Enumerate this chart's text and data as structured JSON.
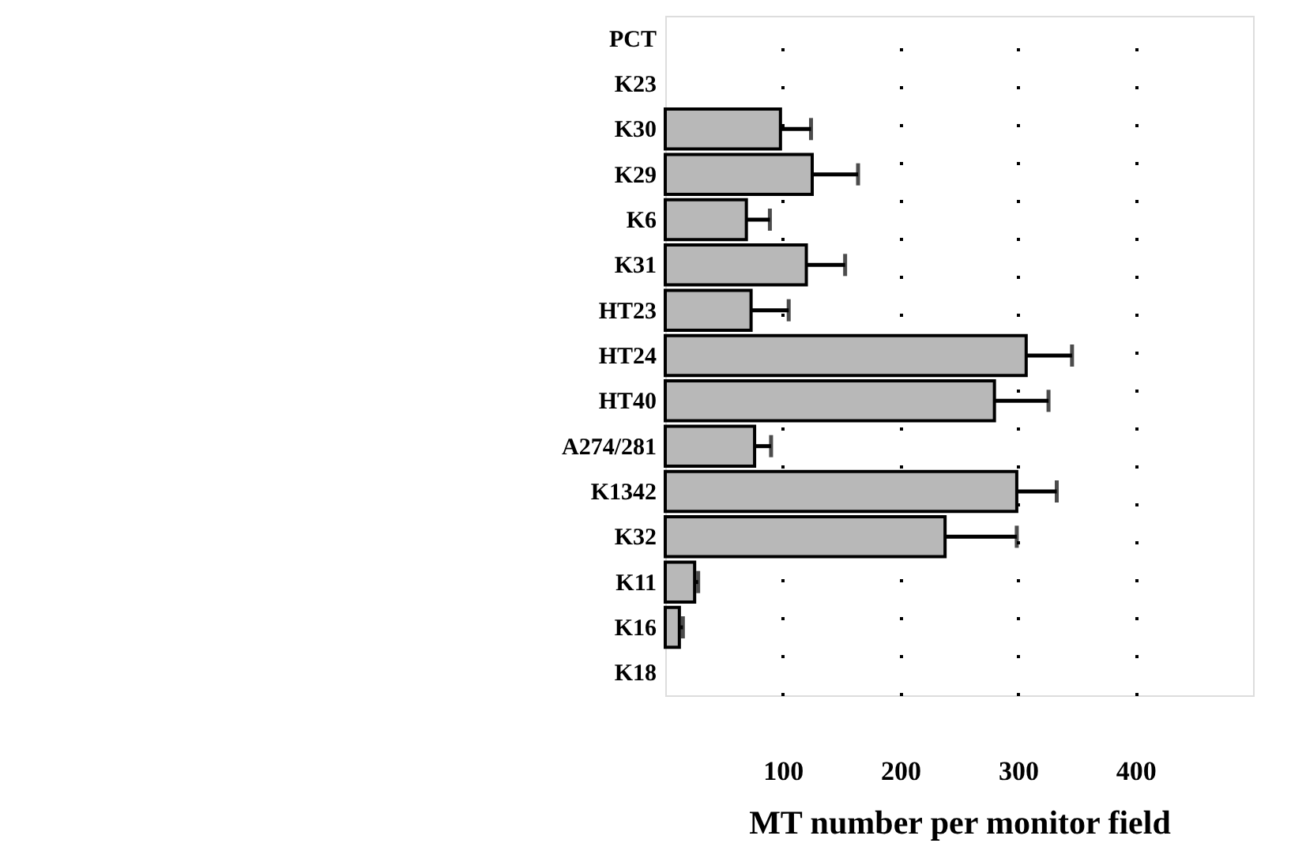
{
  "chart_data": {
    "type": "bar",
    "orientation": "horizontal",
    "xlabel": "MT number per monitor field",
    "categories": [
      "PCT",
      "K23",
      "K30",
      "K29",
      "K6",
      "K31",
      "HT23",
      "HT24",
      "HT40",
      "A274/281",
      "K1342",
      "K32",
      "K11",
      "K16",
      "K18"
    ],
    "values": [
      null,
      null,
      98,
      125,
      69,
      120,
      73,
      307,
      280,
      76,
      299,
      238,
      25,
      12,
      null
    ],
    "errors": [
      null,
      null,
      [
        98,
        124
      ],
      [
        125,
        164
      ],
      [
        69,
        89
      ],
      [
        120,
        153
      ],
      [
        73,
        105
      ],
      [
        307,
        346
      ],
      [
        280,
        326
      ],
      [
        76,
        90
      ],
      [
        299,
        333
      ],
      [
        238,
        299
      ],
      [
        25,
        28
      ],
      [
        12,
        15
      ],
      null
    ],
    "color": "#b8b8b8",
    "xlim": [
      0,
      500
    ],
    "xticks": [
      100,
      200,
      300,
      400
    ],
    "grid": "x"
  }
}
